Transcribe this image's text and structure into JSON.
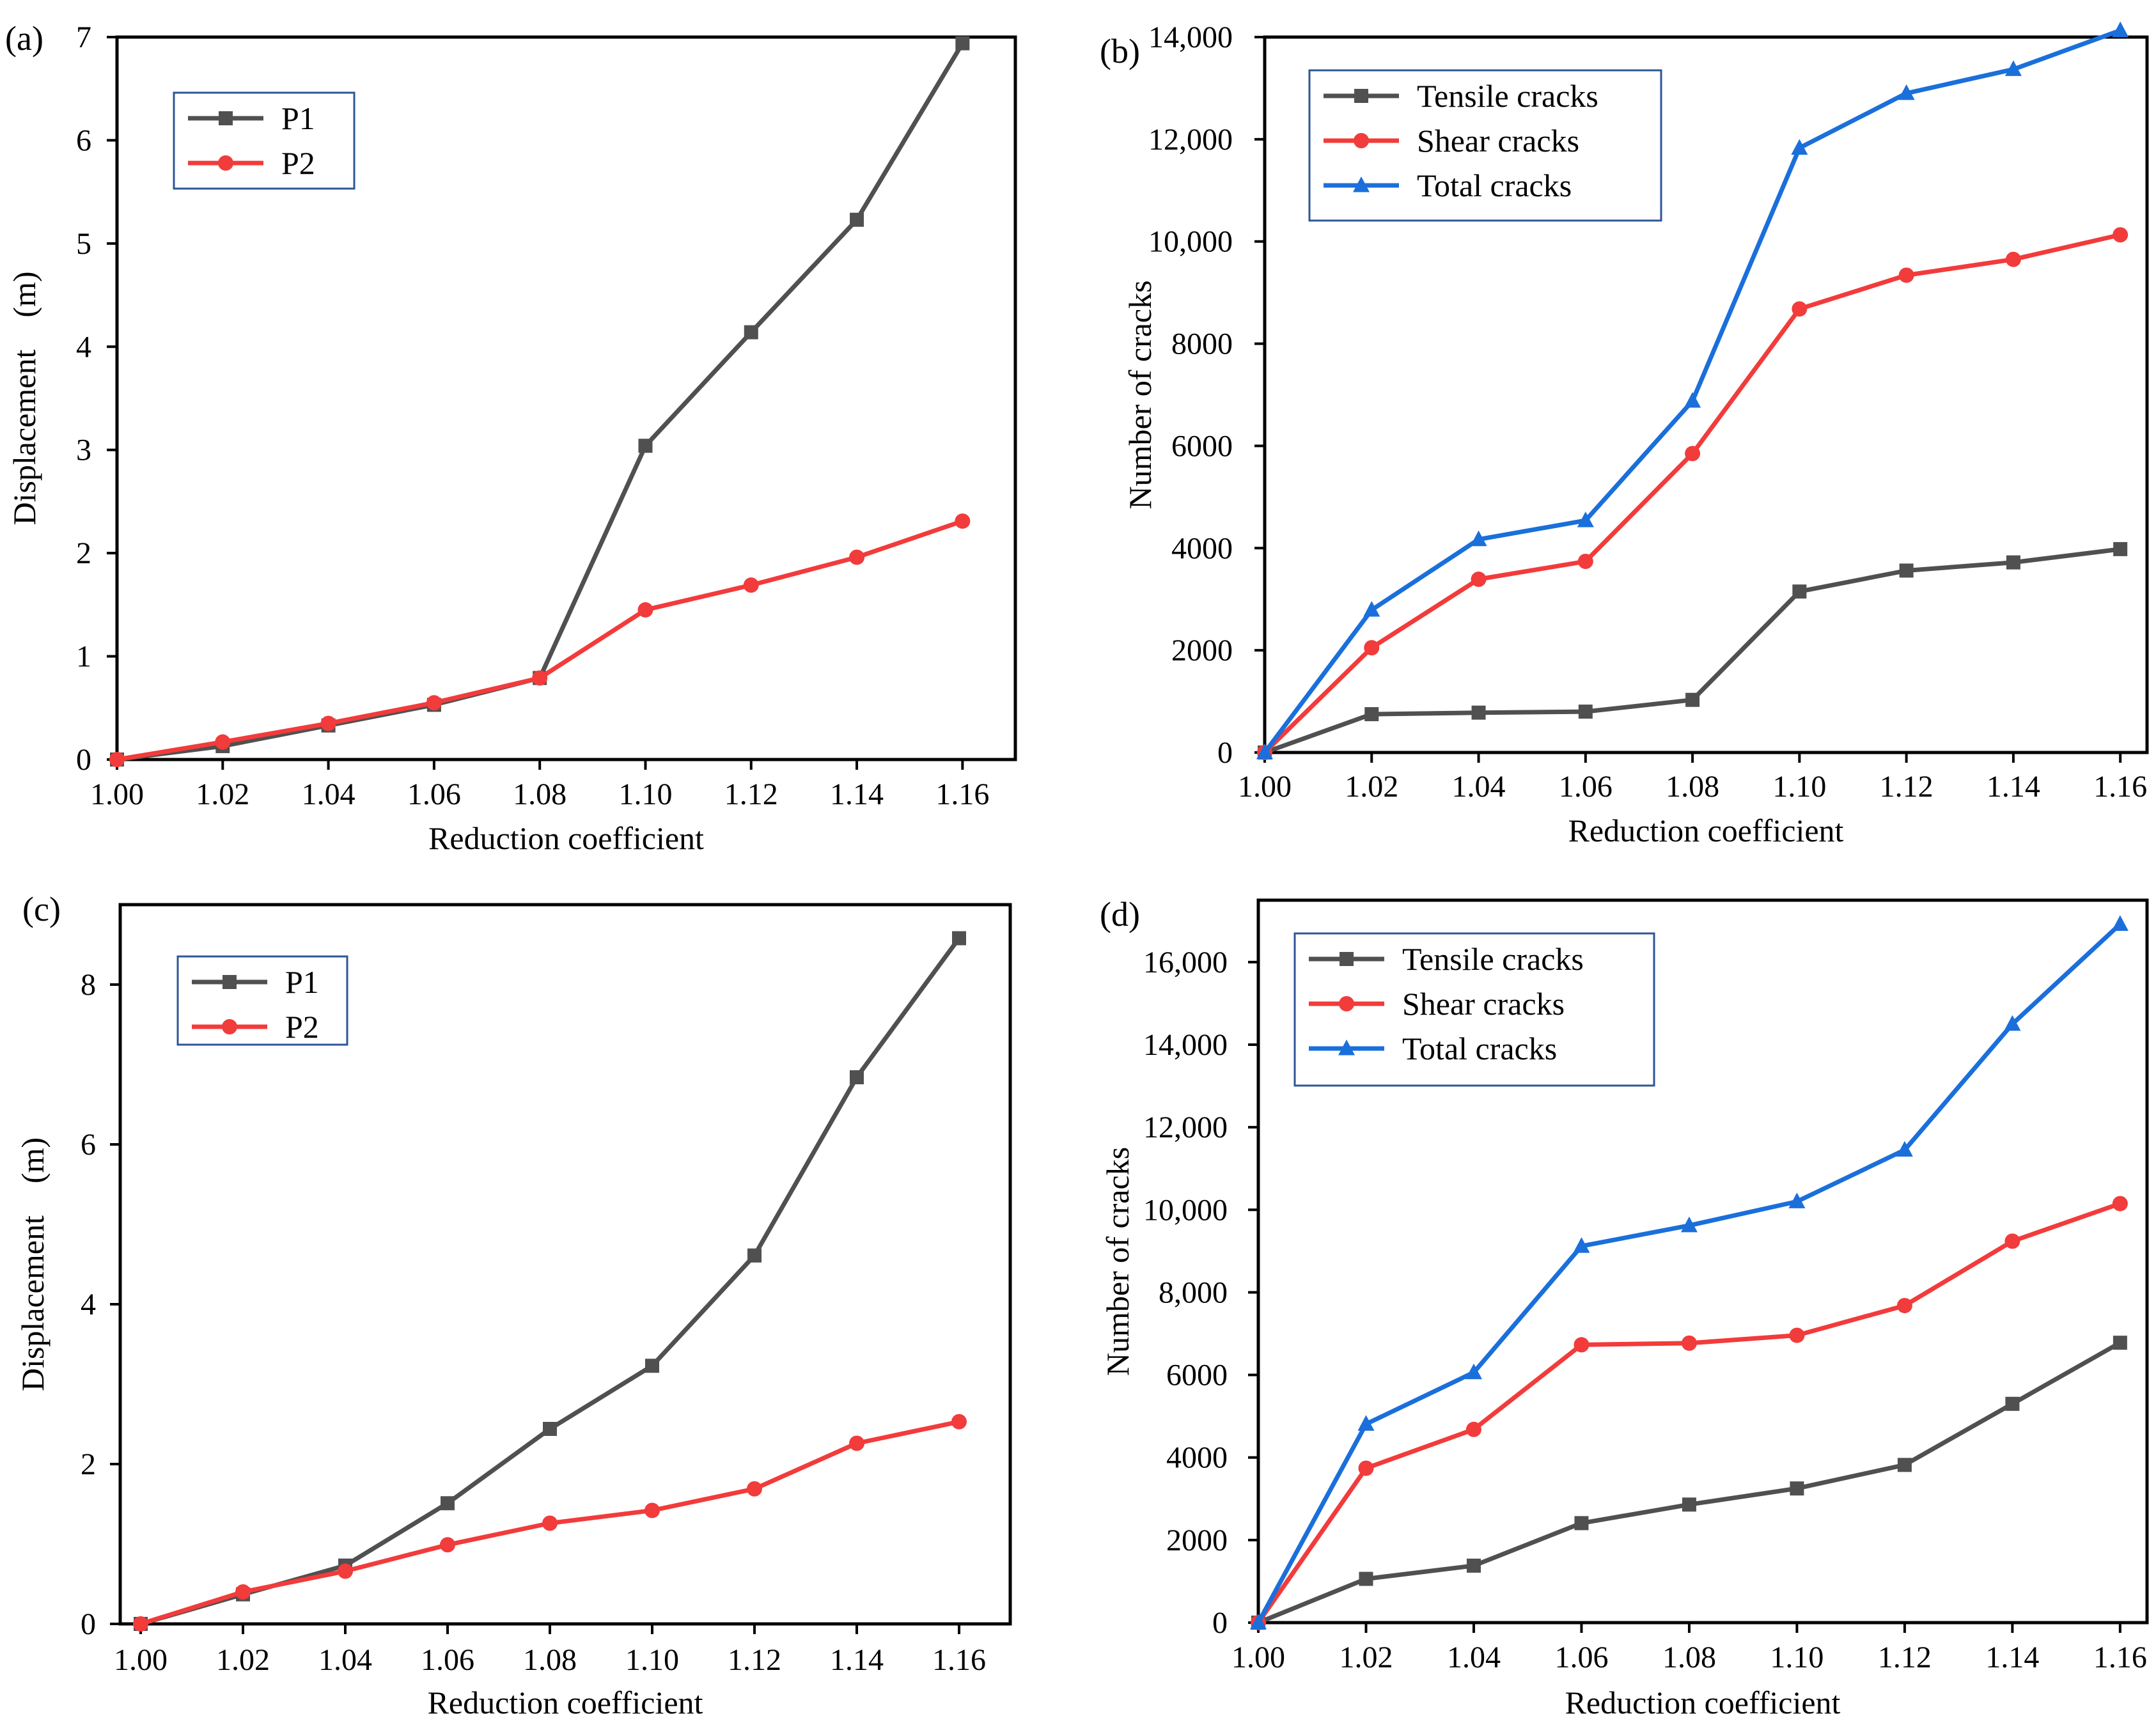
{
  "figure": {
    "colors": {
      "gray": "#505050",
      "red": "#F23B3B",
      "blue": "#1A6FDB",
      "axis": "#000000",
      "legend_border": "#2E5597"
    }
  },
  "chart_data": [
    {
      "panel": "(a)",
      "type": "line",
      "xlabel": "Reduction coefficient",
      "ylabel": "Displacement (m)",
      "xlim": [
        1.0,
        1.17
      ],
      "ylim": [
        0,
        7
      ],
      "xticks": [
        "1.00",
        "1.02",
        "1.04",
        "1.06",
        "1.08",
        "1.10",
        "1.12",
        "1.14",
        "1.16"
      ],
      "yticks": [
        "0",
        "1",
        "2",
        "3",
        "4",
        "5",
        "6",
        "7"
      ],
      "legend": "top-left",
      "x": [
        1.0,
        1.02,
        1.04,
        1.06,
        1.08,
        1.1,
        1.12,
        1.14,
        1.16
      ],
      "series": [
        {
          "name": "P1",
          "color": "#505050",
          "marker": "square",
          "values": [
            0,
            0.13,
            0.33,
            0.53,
            0.79,
            3.04,
            4.14,
            5.23,
            6.94
          ]
        },
        {
          "name": "P2",
          "color": "#F23B3B",
          "marker": "circle",
          "values": [
            0,
            0.17,
            0.35,
            0.55,
            0.79,
            1.45,
            1.69,
            1.96,
            2.31
          ]
        }
      ]
    },
    {
      "panel": "(b)",
      "type": "line",
      "xlabel": "Reduction coefficient",
      "ylabel": "Number of cracks",
      "xlim": [
        1.0,
        1.165
      ],
      "ylim": [
        0,
        14000
      ],
      "xticks": [
        "1.00",
        "1.02",
        "1.04",
        "1.06",
        "1.08",
        "1.10",
        "1.12",
        "1.14",
        "1.16"
      ],
      "yticks": [
        "0",
        "2000",
        "4000",
        "6000",
        "8000",
        "10,000",
        "12,000",
        "14,000"
      ],
      "legend": "top-left",
      "x": [
        1.0,
        1.02,
        1.04,
        1.06,
        1.08,
        1.1,
        1.12,
        1.14,
        1.16
      ],
      "series": [
        {
          "name": "Tensile cracks",
          "color": "#505050",
          "marker": "square",
          "values": [
            0,
            750,
            780,
            800,
            1030,
            3150,
            3560,
            3720,
            3980
          ]
        },
        {
          "name": "Shear cracks",
          "color": "#F23B3B",
          "marker": "circle",
          "values": [
            0,
            2050,
            3390,
            3740,
            5850,
            8680,
            9340,
            9650,
            10130
          ]
        },
        {
          "name": "Total cracks",
          "color": "#1A6FDB",
          "marker": "triangle",
          "values": [
            0,
            2790,
            4170,
            4540,
            6880,
            11830,
            12900,
            13370,
            14130
          ]
        }
      ]
    },
    {
      "panel": "(c)",
      "type": "line",
      "xlabel": "Reduction coefficient",
      "ylabel": "Displacement (m)",
      "xlim": [
        0.996,
        1.17
      ],
      "ylim": [
        0,
        9
      ],
      "xticks": [
        "1.00",
        "1.02",
        "1.04",
        "1.06",
        "1.08",
        "1.10",
        "1.12",
        "1.14",
        "1.16"
      ],
      "yticks": [
        "0",
        "2",
        "4",
        "6",
        "8"
      ],
      "legend": "top-left",
      "x": [
        1.0,
        1.02,
        1.04,
        1.06,
        1.08,
        1.1,
        1.12,
        1.14,
        1.16
      ],
      "series": [
        {
          "name": "P1",
          "color": "#505050",
          "marker": "square",
          "values": [
            0,
            0.37,
            0.73,
            1.51,
            2.44,
            3.23,
            4.61,
            6.84,
            8.58
          ]
        },
        {
          "name": "P2",
          "color": "#F23B3B",
          "marker": "circle",
          "values": [
            0,
            0.4,
            0.66,
            0.99,
            1.26,
            1.42,
            1.69,
            2.26,
            2.53
          ]
        }
      ]
    },
    {
      "panel": "(d)",
      "type": "line",
      "xlabel": "Reduction coefficient",
      "ylabel": "Number of cracks",
      "xlim": [
        1.0,
        1.165
      ],
      "ylim": [
        0,
        17500
      ],
      "xticks": [
        "1.00",
        "1.02",
        "1.04",
        "1.06",
        "1.08",
        "1.10",
        "1.12",
        "1.14",
        "1.16"
      ],
      "yticks": [
        "0",
        "2000",
        "4000",
        "6000",
        "8,000",
        "10,000",
        "12,000",
        "14,000",
        "16,000"
      ],
      "legend": "top-left",
      "x": [
        1.0,
        1.02,
        1.04,
        1.06,
        1.08,
        1.1,
        1.12,
        1.14,
        1.16
      ],
      "series": [
        {
          "name": "Tensile cracks",
          "color": "#505050",
          "marker": "square",
          "values": [
            0,
            1060,
            1380,
            2410,
            2860,
            3250,
            3820,
            5300,
            6780
          ]
        },
        {
          "name": "Shear cracks",
          "color": "#F23B3B",
          "marker": "circle",
          "values": [
            0,
            3740,
            4680,
            6730,
            6770,
            6960,
            7680,
            9240,
            10150
          ]
        },
        {
          "name": "Total cracks",
          "color": "#1A6FDB",
          "marker": "triangle",
          "values": [
            0,
            4810,
            6060,
            9120,
            9620,
            10200,
            11450,
            14500,
            16920
          ]
        }
      ]
    }
  ]
}
